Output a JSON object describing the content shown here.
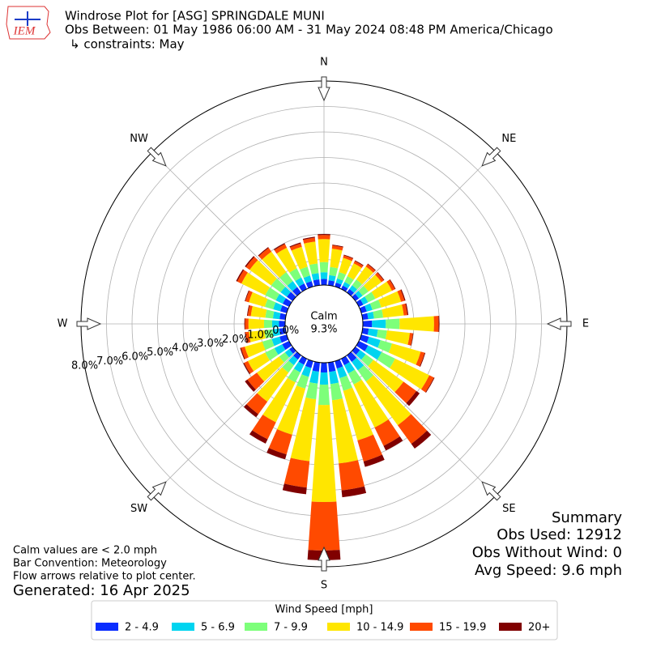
{
  "chart_data": {
    "type": "windrose",
    "title": "Windrose Plot for [ASG] SPRINGDALE MUNI",
    "subtitle": "Obs Between: 01 May 1986 06:00 AM - 31 May 2024 08:48 PM America/Chicago",
    "constraints": "↳ constraints: May",
    "logo_text": "IEM",
    "x": [
      0,
      10,
      20,
      30,
      40,
      50,
      60,
      70,
      80,
      90,
      100,
      110,
      120,
      130,
      140,
      150,
      160,
      170,
      180,
      190,
      200,
      210,
      220,
      230,
      240,
      250,
      260,
      270,
      280,
      290,
      300,
      310,
      320,
      330,
      340,
      350
    ],
    "rlim": [
      0,
      8
    ],
    "rticks": [
      {
        "value": 0,
        "label": "0.0%"
      },
      {
        "value": 1,
        "label": "1.0%"
      },
      {
        "value": 2,
        "label": "2.0%"
      },
      {
        "value": 3,
        "label": "3.0%"
      },
      {
        "value": 4,
        "label": "4.0%"
      },
      {
        "value": 5,
        "label": "5.0%"
      },
      {
        "value": 6,
        "label": "6.0%"
      },
      {
        "value": 7,
        "label": "7.0%"
      },
      {
        "value": 8,
        "label": "8.0%"
      }
    ],
    "compass_labels": [
      "N",
      "NE",
      "E",
      "SE",
      "S",
      "SW",
      "W",
      "NW"
    ],
    "calm": {
      "label": "Calm",
      "values": [
        9.3
      ],
      "value_labels": [
        "9.3%"
      ]
    },
    "legend_title": "Wind Speed [mph]",
    "series": [
      {
        "name": "2 - 4.9",
        "color": "#0a2dff",
        "values": [
          0.24,
          0.19,
          0.16,
          0.15,
          0.17,
          0.17,
          0.19,
          0.22,
          0.22,
          0.36,
          0.24,
          0.31,
          0.4,
          0.22,
          0.32,
          0.28,
          0.3,
          0.37,
          0.38,
          0.36,
          0.28,
          0.26,
          0.21,
          0.16,
          0.3,
          0.29,
          0.24,
          0.24,
          0.23,
          0.26,
          0.28,
          0.28,
          0.26,
          0.24,
          0.22,
          0.23
        ]
      },
      {
        "name": "5 - 6.9",
        "color": "#00d4f0",
        "values": [
          0.26,
          0.21,
          0.17,
          0.16,
          0.18,
          0.18,
          0.21,
          0.23,
          0.23,
          0.54,
          0.36,
          0.47,
          0.59,
          0.28,
          0.41,
          0.36,
          0.39,
          0.48,
          0.48,
          0.47,
          0.36,
          0.33,
          0.27,
          0.21,
          0.34,
          0.32,
          0.27,
          0.27,
          0.26,
          0.29,
          0.3,
          0.3,
          0.29,
          0.26,
          0.23,
          0.25
        ]
      },
      {
        "name": "7 - 9.9",
        "color": "#7dff7a",
        "values": [
          0.4,
          0.32,
          0.26,
          0.25,
          0.28,
          0.28,
          0.32,
          0.36,
          0.36,
          0.54,
          0.36,
          0.47,
          0.59,
          0.37,
          0.54,
          0.48,
          0.52,
          0.64,
          0.8,
          0.62,
          0.48,
          0.44,
          0.36,
          0.28,
          0.4,
          0.38,
          0.32,
          0.32,
          0.3,
          0.34,
          0.46,
          0.46,
          0.44,
          0.4,
          0.36,
          0.38
        ]
      },
      {
        "name": "10 - 14.9",
        "color": "#ffe600",
        "values": [
          0.9,
          0.72,
          0.58,
          0.56,
          0.63,
          0.63,
          0.72,
          0.81,
          0.81,
          1.35,
          0.9,
          1.17,
          1.49,
          1.46,
          2.12,
          1.88,
          2.02,
          2.49,
          3.8,
          2.44,
          1.88,
          1.74,
          1.41,
          1.08,
          0.76,
          0.72,
          0.61,
          0.61,
          0.57,
          0.65,
          1.04,
          1.04,
          0.99,
          0.9,
          0.81,
          0.86
        ]
      },
      {
        "name": "15 - 19.9",
        "color": "#ff4a00",
        "values": [
          0.16,
          0.13,
          0.1,
          0.1,
          0.11,
          0.11,
          0.13,
          0.14,
          0.14,
          0.18,
          0.12,
          0.16,
          0.2,
          0.62,
          0.9,
          0.8,
          0.86,
          1.06,
          1.9,
          1.04,
          0.8,
          0.74,
          0.6,
          0.46,
          0.16,
          0.15,
          0.13,
          0.13,
          0.12,
          0.14,
          0.18,
          0.18,
          0.18,
          0.16,
          0.14,
          0.15
        ]
      },
      {
        "name": "20+",
        "color": "#800000",
        "values": [
          0.04,
          0.03,
          0.03,
          0.03,
          0.03,
          0.03,
          0.03,
          0.04,
          0.04,
          0.03,
          0.02,
          0.03,
          0.03,
          0.16,
          0.23,
          0.2,
          0.22,
          0.27,
          0.38,
          0.26,
          0.2,
          0.19,
          0.15,
          0.12,
          0.04,
          0.04,
          0.03,
          0.03,
          0.03,
          0.03,
          0.05,
          0.05,
          0.04,
          0.04,
          0.04,
          0.04
        ]
      }
    ],
    "summary": [
      "Summary",
      "Obs Used: 12912",
      "Obs Without Wind: 0",
      "Avg Speed: 9.6 mph"
    ],
    "notes": [
      "Calm values are < 2.0 mph",
      "Bar Convention: Meteorology",
      "Flow arrows relative to plot center."
    ],
    "generated": "Generated: 16 Apr 2025"
  }
}
